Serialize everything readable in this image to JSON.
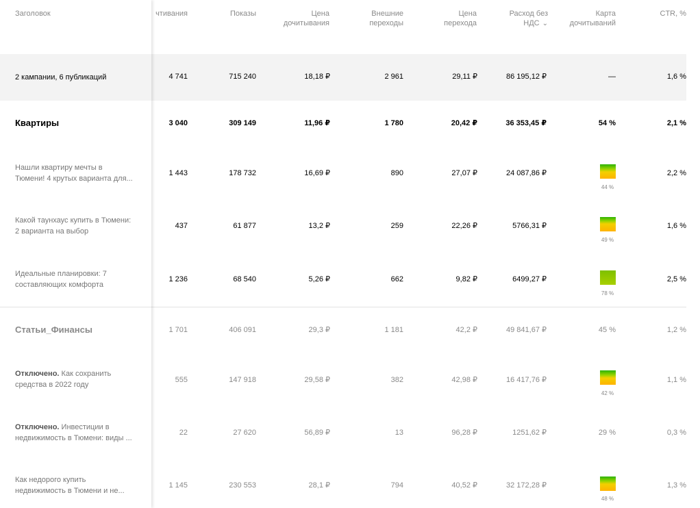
{
  "columns": {
    "title": "Заголовок",
    "reads": "чтивания",
    "shows": "Показы",
    "read_price": "Цена дочитывания",
    "ext_clicks": "Внешние переходы",
    "click_price": "Цена перехода",
    "spend": "Расход без НДС",
    "read_map": "Карта дочитываний",
    "ctr": "CTR, %"
  },
  "total": {
    "name": "2 кампании, 6 публикаций",
    "reads": "4 741",
    "shows": "715 240",
    "read_price": "18,18 ₽",
    "ext_clicks": "2 961",
    "click_price": "29,11 ₽",
    "spend": "86 195,12 ₽",
    "read_map": "—",
    "ctr": "1,6 %"
  },
  "groups": [
    {
      "name": "Квартиры",
      "reads": "3 040",
      "shows": "309 149",
      "read_price": "11,96 ₽",
      "ext_clicks": "1 780",
      "click_price": "20,42 ₽",
      "spend": "36 353,45 ₽",
      "read_map": "54 %",
      "ctr": "2,1 %",
      "items": [
        {
          "status": "",
          "name_line1": "Нашли квартиру мечты в",
          "name_line2": "Тюмени! 4 крутых варианта для...",
          "reads": "1 443",
          "shows": "178 732",
          "read_price": "16,69 ₽",
          "ext_clicks": "890",
          "click_price": "27,07 ₽",
          "spend": "24 087,86 ₽",
          "read_map_pct": "44 %",
          "read_map_value": 0.44,
          "ctr": "2,2 %"
        },
        {
          "status": "",
          "name_line1": "Какой таунхаус купить в Тюмени:",
          "name_line2": "2 варианта на выбор",
          "reads": "437",
          "shows": "61 877",
          "read_price": "13,2 ₽",
          "ext_clicks": "259",
          "click_price": "22,26 ₽",
          "spend": "5766,31 ₽",
          "read_map_pct": "49 %",
          "read_map_value": 0.49,
          "ctr": "1,6 %"
        },
        {
          "status": "",
          "name_line1": "Идеальные планировки: 7",
          "name_line2": "составляющих комфорта",
          "reads": "1 236",
          "shows": "68 540",
          "read_price": "5,26 ₽",
          "ext_clicks": "662",
          "click_price": "9,82 ₽",
          "spend": "6499,27 ₽",
          "read_map_pct": "78 %",
          "read_map_value": 0.78,
          "ctr": "2,5 %"
        }
      ]
    },
    {
      "name": "Статьи_Финансы",
      "reads": "1 701",
      "shows": "406 091",
      "read_price": "29,3 ₽",
      "ext_clicks": "1 181",
      "click_price": "42,2 ₽",
      "spend": "49 841,67 ₽",
      "read_map": "45 %",
      "ctr": "1,2 %",
      "items": [
        {
          "status": "Отключено.",
          "name_line1": "Как сохранить",
          "name_line2": "средства в 2022 году",
          "reads": "555",
          "shows": "147 918",
          "read_price": "29,58 ₽",
          "ext_clicks": "382",
          "click_price": "42,98 ₽",
          "spend": "16 417,76 ₽",
          "read_map_pct": "42 %",
          "read_map_value": 0.42,
          "ctr": "1,1 %"
        },
        {
          "status": "Отключено.",
          "name_line1": "Инвестиции в",
          "name_line2": "недвижимость в Тюмени: виды ...",
          "reads": "22",
          "shows": "27 620",
          "read_price": "56,89 ₽",
          "ext_clicks": "13",
          "click_price": "96,28 ₽",
          "spend": "1251,62 ₽",
          "read_map_pct": "29 %",
          "read_map_value": null,
          "ctr": "0,3 %"
        },
        {
          "status": "",
          "name_line1": "Как недорого купить",
          "name_line2": "недвижимость в Тюмени и не...",
          "reads": "1 145",
          "shows": "230 553",
          "read_price": "28,1 ₽",
          "ext_clicks": "794",
          "click_price": "40,52 ₽",
          "spend": "32 172,28 ₽",
          "read_map_pct": "48 %",
          "read_map_value": 0.48,
          "ctr": "1,3 %"
        }
      ]
    }
  ],
  "icons": {
    "sort": "chevron-down-icon"
  },
  "colors": {
    "map_low": "#ffb300",
    "map_high": "#2db300",
    "total_bg": "#f3f3f3"
  }
}
